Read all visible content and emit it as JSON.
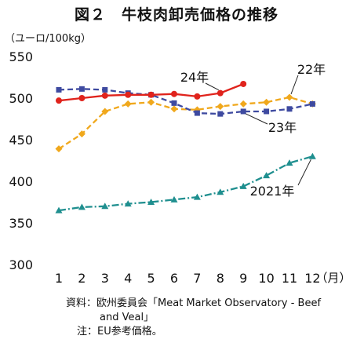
{
  "chart_data": {
    "type": "line",
    "title": "図２　牛枝肉卸売価格の推移",
    "ylabel": "（ユーロ/100kg）",
    "x_unit": "（月）",
    "categories": [
      1,
      2,
      3,
      4,
      5,
      6,
      7,
      8,
      9,
      10,
      11,
      12
    ],
    "ylim": [
      300,
      550
    ],
    "yticks": [
      300,
      350,
      400,
      450,
      500,
      550
    ],
    "grid": false,
    "series": [
      {
        "name": "24年",
        "color": "#e0231c",
        "dash": "solid",
        "marker": "circle",
        "values": [
          497,
          500,
          503,
          504,
          504,
          505,
          502,
          506,
          517,
          null,
          null,
          null
        ]
      },
      {
        "name": "22年",
        "color": "#f0a81c",
        "dash": "dashed",
        "marker": "diamond",
        "values": [
          439,
          457,
          484,
          493,
          495,
          487,
          486,
          490,
          493,
          495,
          501,
          493
        ]
      },
      {
        "name": "23年",
        "color": "#3e4aa0",
        "dash": "dashed",
        "marker": "square",
        "values": [
          510,
          511,
          510,
          506,
          504,
          494,
          482,
          481,
          484,
          484,
          487,
          493
        ]
      },
      {
        "name": "2021年",
        "color": "#1f8f8f",
        "dash": "dashdot",
        "marker": "triangle",
        "values": [
          365,
          369,
          370,
          373,
          375,
          378,
          381,
          387,
          394,
          407,
          422,
          430
        ]
      }
    ]
  },
  "footnotes": {
    "source_prefix": "資料：",
    "source_line1": "欧州委員会「Meat Market Observatory - Beef",
    "source_line2": "and Veal」",
    "note_prefix": "注：",
    "note_text": "EU参考価格。"
  }
}
